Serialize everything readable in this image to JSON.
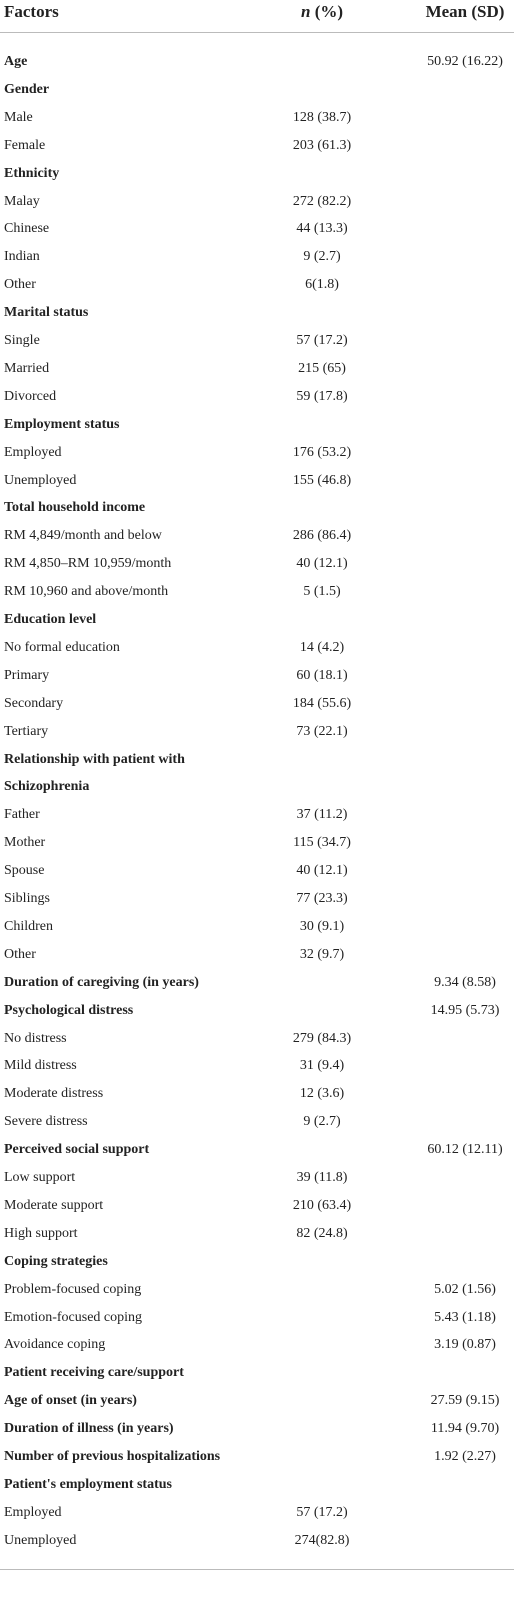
{
  "table": {
    "header": [
      "Factors",
      {
        "italic": "n",
        "text": " (%)"
      },
      "Mean (SD)"
    ],
    "rows": [
      {
        "label": "Age",
        "bold": true,
        "mean": "50.92 (16.22)"
      },
      {
        "label": "Gender",
        "bold": true
      },
      {
        "label": "Male",
        "n": "128 (38.7)"
      },
      {
        "label": "Female",
        "n": "203 (61.3)"
      },
      {
        "label": "Ethnicity",
        "bold": true
      },
      {
        "label": "Malay",
        "n": "272 (82.2)"
      },
      {
        "label": "Chinese",
        "n": "44 (13.3)"
      },
      {
        "label": "Indian",
        "n": "9 (2.7)"
      },
      {
        "label": "Other",
        "n": "6(1.8)"
      },
      {
        "label": "Marital status",
        "bold": true
      },
      {
        "label": "Single",
        "n": "57 (17.2)"
      },
      {
        "label": "Married",
        "n": "215 (65)"
      },
      {
        "label": "Divorced",
        "n": "59 (17.8)"
      },
      {
        "label": "Employment status",
        "bold": true
      },
      {
        "label": "Employed",
        "n": "176 (53.2)"
      },
      {
        "label": "Unemployed",
        "n": "155 (46.8)"
      },
      {
        "label": "Total household income",
        "bold": true
      },
      {
        "label": "RM 4,849/month and below",
        "n": "286 (86.4)"
      },
      {
        "label": "RM 4,850–RM 10,959/month",
        "n": "40 (12.1)"
      },
      {
        "label": "RM 10,960 and above/month",
        "n": "5 (1.5)"
      },
      {
        "label": "Education level",
        "bold": true
      },
      {
        "label": "No formal education",
        "n": "14 (4.2)"
      },
      {
        "label": "Primary",
        "n": "60 (18.1)"
      },
      {
        "label": "Secondary",
        "n": "184 (55.6)"
      },
      {
        "label": "Tertiary",
        "n": "73 (22.1)"
      },
      {
        "label": "Relationship with patient with",
        "bold": true
      },
      {
        "label": "Schizophrenia",
        "bold": true
      },
      {
        "label": "Father",
        "n": "37 (11.2)"
      },
      {
        "label": "Mother",
        "n": "115 (34.7)"
      },
      {
        "label": "Spouse",
        "n": "40 (12.1)"
      },
      {
        "label": "Siblings",
        "n": "77 (23.3)"
      },
      {
        "label": "Children",
        "n": "30 (9.1)"
      },
      {
        "label": "Other",
        "n": "32 (9.7)"
      },
      {
        "label": "Duration of caregiving (in years)",
        "bold": true,
        "mean": "9.34 (8.58)"
      },
      {
        "label": "Psychological distress",
        "bold": true,
        "mean": "14.95 (5.73)"
      },
      {
        "label": "No distress",
        "n": "279 (84.3)"
      },
      {
        "label": "Mild distress",
        "n": "31 (9.4)"
      },
      {
        "label": "Moderate distress",
        "n": "12 (3.6)"
      },
      {
        "label": "Severe distress",
        "n": "9 (2.7)"
      },
      {
        "label": "Perceived social support",
        "bold": true,
        "mean": "60.12 (12.11)"
      },
      {
        "label": "Low support",
        "n": "39 (11.8)"
      },
      {
        "label": "Moderate support",
        "n": "210 (63.4)"
      },
      {
        "label": "High support",
        "n": "82 (24.8)"
      },
      {
        "label": "Coping strategies",
        "bold": true
      },
      {
        "label": "Problem-focused coping",
        "mean": "5.02 (1.56)"
      },
      {
        "label": "Emotion-focused coping",
        "mean": "5.43 (1.18)"
      },
      {
        "label": "Avoidance coping",
        "mean": "3.19 (0.87)"
      },
      {
        "label": "Patient receiving care/support",
        "bold": true
      },
      {
        "label": "Age of onset (in years)",
        "bold": true,
        "mean": "27.59 (9.15)"
      },
      {
        "label": "Duration of illness (in years)",
        "bold": true,
        "mean": "11.94 (9.70)"
      },
      {
        "label": "Number of previous hospitalizations",
        "bold": true,
        "mean": "1.92 (2.27)"
      },
      {
        "label": "Patient's employment status",
        "bold": true
      },
      {
        "label": "Employed",
        "n": "57 (17.2)"
      },
      {
        "label": "Unemployed",
        "n": "274(82.8)"
      }
    ]
  }
}
